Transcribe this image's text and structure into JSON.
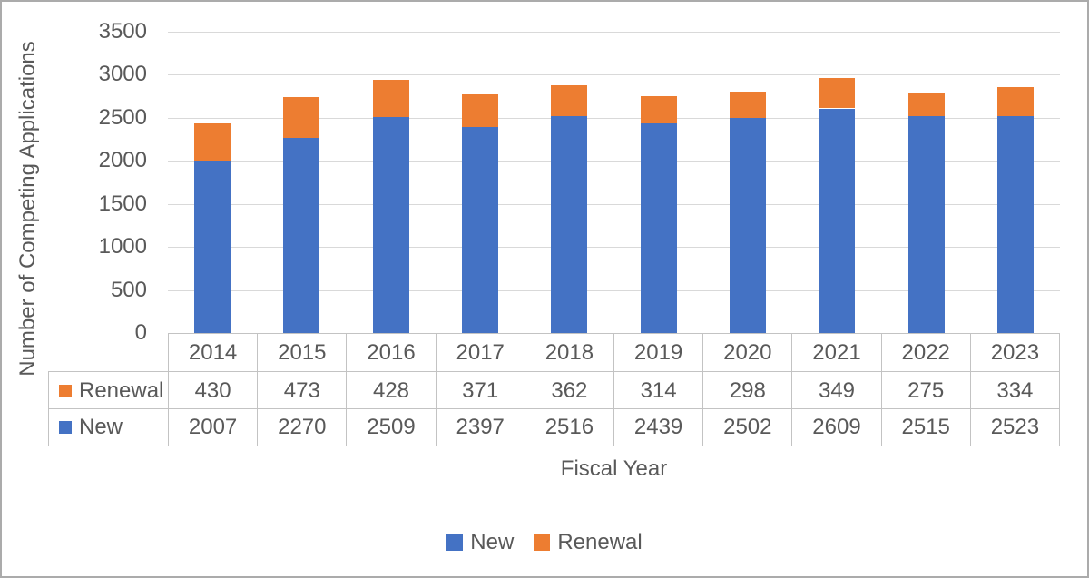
{
  "chart_data": {
    "type": "bar",
    "stacked": true,
    "title": "",
    "xlabel": "Fiscal Year",
    "ylabel": "Number of Competing Applications",
    "categories": [
      "2014",
      "2015",
      "2016",
      "2017",
      "2018",
      "2019",
      "2020",
      "2021",
      "2022",
      "2023"
    ],
    "series": [
      {
        "name": "New",
        "color": "#4472C4",
        "values": [
          2007,
          2270,
          2509,
          2397,
          2516,
          2439,
          2502,
          2609,
          2515,
          2523
        ]
      },
      {
        "name": "Renewal",
        "color": "#ED7D31",
        "values": [
          430,
          473,
          428,
          371,
          362,
          314,
          298,
          349,
          275,
          334
        ]
      }
    ],
    "ylim": [
      0,
      3500
    ],
    "ytick_interval": 500,
    "yticks": [
      0,
      500,
      1000,
      1500,
      2000,
      2500,
      3000,
      3500
    ],
    "grid": true,
    "legend_position": "bottom",
    "data_table_shown": true,
    "data_table_row_order": [
      "Renewal",
      "New"
    ]
  },
  "colors": {
    "new_series": "#4472C4",
    "renewal_series": "#ED7D31",
    "text": "#595959",
    "gridline": "#D9D9D9",
    "table_border": "#C3C3C3",
    "frame_border": "#ABABAB"
  },
  "legend": {
    "items": [
      {
        "label": "New",
        "color": "#4472C4"
      },
      {
        "label": "Renewal",
        "color": "#ED7D31"
      }
    ]
  }
}
